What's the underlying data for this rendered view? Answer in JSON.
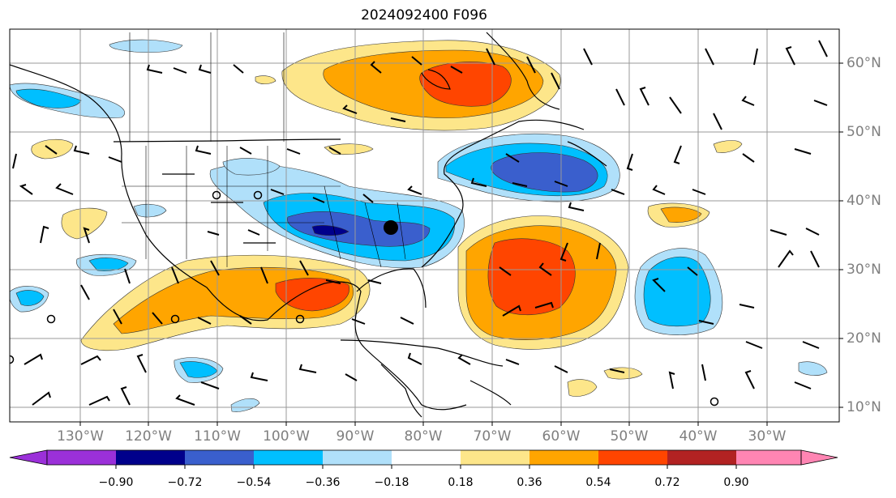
{
  "title": "2024092400 F096",
  "lon_labels": [
    "130°W",
    "120°W",
    "110°W",
    "100°W",
    "90°W",
    "80°W",
    "70°W",
    "60°W",
    "50°W",
    "40°W",
    "30°W"
  ],
  "lat_labels": [
    "60°N",
    "50°N",
    "40°N",
    "30°N",
    "20°N",
    "10°N"
  ],
  "colorbar": {
    "ticks": [
      "−0.90",
      "−0.72",
      "−0.54",
      "−0.36",
      "−0.18",
      "0.18",
      "0.36",
      "0.54",
      "0.72",
      "0.90"
    ],
    "colors": [
      "#9b30d9",
      "#00008b",
      "#3a5fcd",
      "#00bfff",
      "#b0e0fa",
      "#ffffff",
      "#fde68a",
      "#ffa500",
      "#ff4500",
      "#b22222",
      "#ff85b3"
    ]
  },
  "map": {
    "extent": {
      "lon": [
        -137,
        -13
      ],
      "lat": [
        8,
        65
      ]
    },
    "gridline_color": "#999999",
    "center_marker": {
      "lon": -84.5,
      "lat": 36.5
    }
  }
}
